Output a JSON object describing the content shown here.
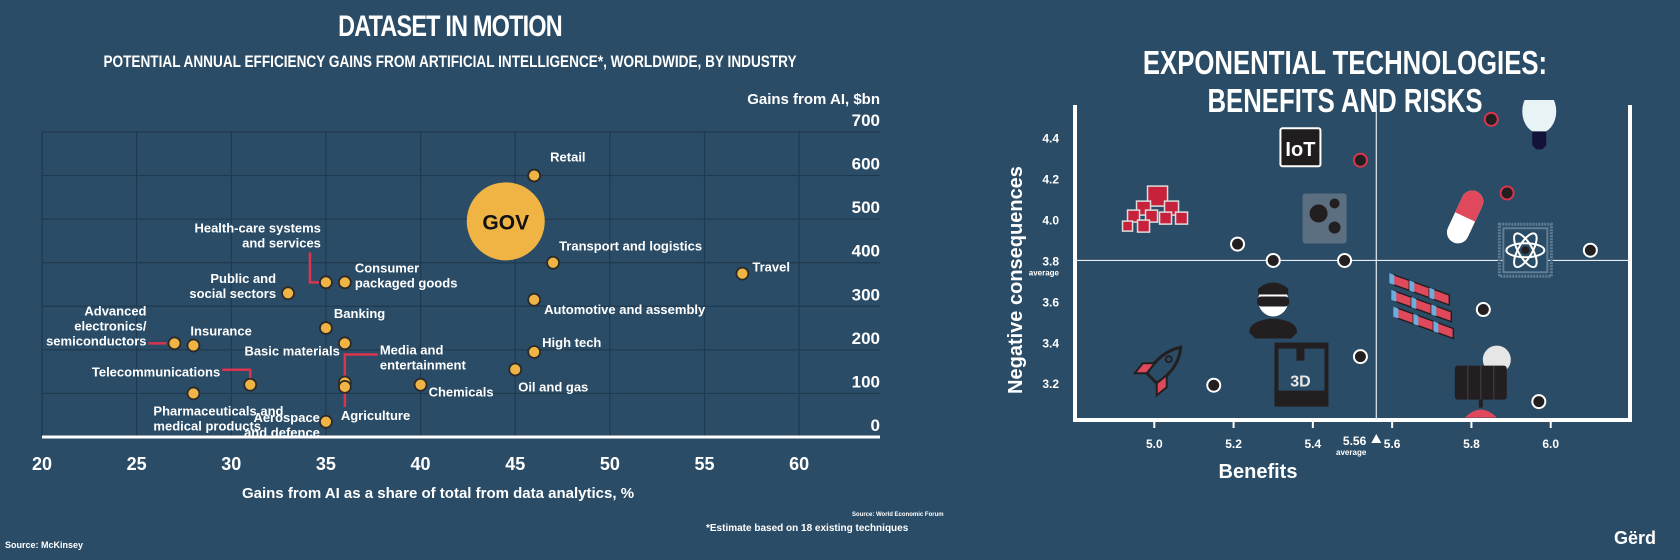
{
  "left_panel": {
    "title": "DATASET IN MOTION",
    "subtitle": "POTENTIAL ANNUAL EFFICIENCY GAINS FROM ARTIFICIAL INTELLIGENCE*, WORLDWIDE, BY INDUSTRY",
    "source": "Source: McKinsey",
    "footnote": "*Estimate based on 18 existing techniques",
    "source2": "Source: World Economic Forum"
  },
  "right_panel": {
    "title": "EXPONENTIAL TECHNOLOGIES: BENEFITS AND RISKS",
    "logo": "Gërd"
  },
  "colors": {
    "background": "#2b4c66",
    "bubble": "#f0b445",
    "leader": "#d9354f",
    "grid": "#1f3a4f",
    "marker_dark": "#231f20"
  },
  "chart_data": [
    {
      "type": "scatter",
      "title": "POTENTIAL ANNUAL EFFICIENCY GAINS FROM ARTIFICIAL INTELLIGENCE*, WORLDWIDE, BY INDUSTRY",
      "xlabel": "Gains from AI as a share of total from data analytics, %",
      "ylabel": "Gains from AI, $bn",
      "xlim": [
        20,
        62
      ],
      "ylim": [
        0,
        700
      ],
      "xticks": [
        20,
        25,
        30,
        35,
        40,
        45,
        50,
        55,
        60
      ],
      "yticks": [
        0,
        100,
        200,
        300,
        400,
        500,
        600,
        700
      ],
      "grid": true,
      "highlight": {
        "label": "GOV",
        "x": 44.5,
        "y": 495
      },
      "points": [
        {
          "label": "Retail",
          "x": 46,
          "y": 600
        },
        {
          "label": "Transport and logistics",
          "x": 47,
          "y": 400
        },
        {
          "label": "Travel",
          "x": 57,
          "y": 375
        },
        {
          "label": "Automotive and assembly",
          "x": 46,
          "y": 315
        },
        {
          "label": "Health-care systems and services",
          "x": 35,
          "y": 355
        },
        {
          "label": "Consumer packaged goods",
          "x": 36,
          "y": 355
        },
        {
          "label": "Public and social sectors",
          "x": 33,
          "y": 330
        },
        {
          "label": "Banking",
          "x": 35,
          "y": 250
        },
        {
          "label": "Advanced electronics/ semiconductors",
          "x": 27,
          "y": 215
        },
        {
          "label": "Insurance",
          "x": 28,
          "y": 210
        },
        {
          "label": "Basic materials",
          "x": 36,
          "y": 215
        },
        {
          "label": "High tech",
          "x": 46,
          "y": 195
        },
        {
          "label": "Oil and gas",
          "x": 45,
          "y": 155
        },
        {
          "label": "Media and entertainment",
          "x": 36,
          "y": 125
        },
        {
          "label": "Agriculture",
          "x": 36,
          "y": 115
        },
        {
          "label": "Chemicals",
          "x": 40,
          "y": 120
        },
        {
          "label": "Telecommunications",
          "x": 31,
          "y": 120
        },
        {
          "label": "Pharmaceuticals and medical products",
          "x": 28,
          "y": 100
        },
        {
          "label": "Aerospace and defence",
          "x": 35,
          "y": 35
        }
      ]
    },
    {
      "type": "scatter",
      "title": "EXPONENTIAL TECHNOLOGIES: BENEFITS AND RISKS",
      "xlabel": "Benefits",
      "ylabel": "Negative consequences",
      "xlim": [
        4.8,
        6.2
      ],
      "ylim": [
        3.02,
        4.56
      ],
      "xticks": [
        5.0,
        5.2,
        5.4,
        5.6,
        5.8,
        6.0
      ],
      "yticks": [
        3.2,
        3.4,
        3.6,
        3.8,
        4.0,
        4.2,
        4.4
      ],
      "x_average": 5.56,
      "y_average": 3.8,
      "average_label": "average",
      "points": [
        {
          "label": "Artificial intelligence",
          "icon": "brain-lightbulb",
          "x": 5.85,
          "y": 4.49,
          "ring": "red"
        },
        {
          "label": "Internet of Things",
          "icon": "iot-chip",
          "x": 5.52,
          "y": 4.29,
          "ring": "red",
          "badge": "IoT"
        },
        {
          "label": "Biotechnology",
          "icon": "dna-capsule",
          "x": 5.89,
          "y": 4.13,
          "ring": "red"
        },
        {
          "label": "Blockchain",
          "icon": "blocks",
          "x": 5.21,
          "y": 3.88,
          "ring": "white"
        },
        {
          "label": "Big data",
          "icon": "data-network",
          "x": 5.48,
          "y": 3.8,
          "ring": "white"
        },
        {
          "label": "Virtual reality",
          "icon": "vr-headset",
          "x": 5.3,
          "y": 3.8,
          "ring": "white"
        },
        {
          "label": "Quantum computing",
          "icon": "atom-chip",
          "x": 6.1,
          "y": 3.85,
          "ring": "white"
        },
        {
          "label": "Advanced materials",
          "icon": "material-cubes",
          "x": 5.83,
          "y": 3.56,
          "ring": "white"
        },
        {
          "label": "3D printing",
          "icon": "3d-printer",
          "x": 5.52,
          "y": 3.33,
          "ring": "white"
        },
        {
          "label": "Space technologies",
          "icon": "rocket",
          "x": 5.15,
          "y": 3.19,
          "ring": "white"
        },
        {
          "label": "Energy capture and storage",
          "icon": "solar-panel",
          "x": 5.97,
          "y": 3.11,
          "ring": "white"
        }
      ]
    }
  ]
}
